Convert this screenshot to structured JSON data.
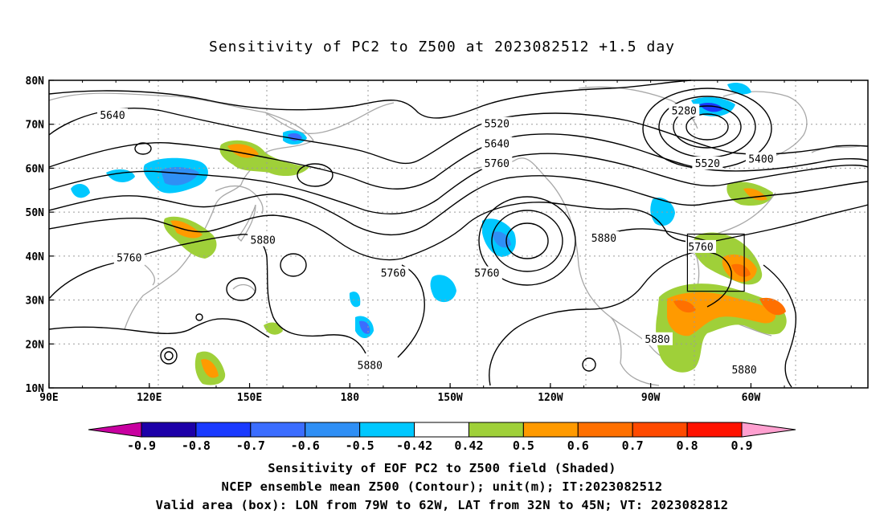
{
  "title": "Sensitivity of PC2 to Z500 at 2023082512 +1.5 day",
  "lat_ticks": [
    "80N",
    "70N",
    "60N",
    "50N",
    "40N",
    "30N",
    "20N",
    "10N"
  ],
  "lon_ticks": [
    "90E",
    "120E",
    "150E",
    "180",
    "150W",
    "120W",
    "90W",
    "60W"
  ],
  "contour_labels": [
    {
      "text": "5640",
      "lon": 109,
      "lat": 72
    },
    {
      "text": "5520",
      "lon": -136,
      "lat": 70
    },
    {
      "text": "5640",
      "lon": -136,
      "lat": 65.5
    },
    {
      "text": "5760",
      "lon": -136,
      "lat": 61
    },
    {
      "text": "5280",
      "lon": -80,
      "lat": 73
    },
    {
      "text": "5400",
      "lon": -57,
      "lat": 62
    },
    {
      "text": "5520",
      "lon": -73,
      "lat": 61
    },
    {
      "text": "5880",
      "lon": 154,
      "lat": 43.5
    },
    {
      "text": "5760",
      "lon": 114,
      "lat": 39.5
    },
    {
      "text": "5760",
      "lon": -167,
      "lat": 36
    },
    {
      "text": "5760",
      "lon": -139,
      "lat": 36
    },
    {
      "text": "5880",
      "lon": -104,
      "lat": 44
    },
    {
      "text": "5760",
      "lon": -75,
      "lat": 42
    },
    {
      "text": "5880",
      "lon": -174,
      "lat": 15
    },
    {
      "text": "5880",
      "lon": -88,
      "lat": 21
    },
    {
      "text": "5880",
      "lon": -62,
      "lat": 14
    }
  ],
  "valid_box": {
    "lon_w": -79,
    "lon_e": -62,
    "lat_s": 32,
    "lat_n": 45
  },
  "colorbar": {
    "labels": [
      "-0.9",
      "-0.8",
      "-0.7",
      "-0.6",
      "-0.5",
      "-0.42",
      "0.42",
      "0.5",
      "0.6",
      "0.7",
      "0.8",
      "0.9"
    ],
    "colors": [
      "#1d00a8",
      "#1a3aff",
      "#3b6dff",
      "#2f8ff5",
      "#00c8ff",
      "#ffffff",
      "#9fd039",
      "#ff9a00",
      "#ff7000",
      "#ff4a00",
      "#ff1200"
    ],
    "end_low": "#c800a0",
    "end_high": "#ffa0d0"
  },
  "caption": [
    "Sensitivity of EOF PC2 to Z500 field (Shaded)",
    "NCEP ensemble mean Z500 (Contour); unit(m); IT:2023082512",
    "Valid area (box): LON from 79W to 62W, LAT from 32N to 45N; VT: 2023082812"
  ]
}
